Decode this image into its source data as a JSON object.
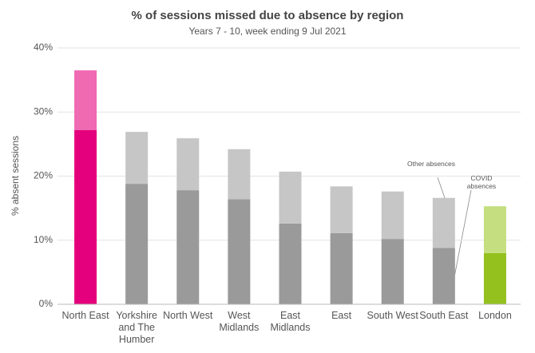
{
  "chart_data": {
    "type": "stacked-bar",
    "title": "% of sessions missed due to absence by region",
    "subtitle": "Years 7 - 10, week ending 9 Jul 2021",
    "y_label": "% absent sessions",
    "categories": [
      "North East",
      "Yorkshire and The Humber",
      "North West",
      "West Midlands",
      "East Midlands",
      "East",
      "South West",
      "South East",
      "London"
    ],
    "series": [
      {
        "name": "COVID absences",
        "values": [
          27.2,
          18.8,
          17.8,
          16.4,
          12.6,
          11.1,
          10.2,
          8.8,
          8.0
        ],
        "colors": [
          "#e4007c",
          "#9a9a9a",
          "#9a9a9a",
          "#9a9a9a",
          "#9a9a9a",
          "#9a9a9a",
          "#9a9a9a",
          "#9a9a9a",
          "#95c11f"
        ]
      },
      {
        "name": "Other absences",
        "values": [
          9.3,
          8.1,
          8.1,
          7.8,
          8.1,
          7.3,
          7.4,
          7.8,
          7.3
        ],
        "colors": [
          "#f06ab2",
          "#c6c6c6",
          "#c6c6c6",
          "#c6c6c6",
          "#c6c6c6",
          "#c6c6c6",
          "#c6c6c6",
          "#c6c6c6",
          "#c5de80"
        ]
      }
    ],
    "ylim": [
      0,
      40
    ],
    "yticks": [
      {
        "value": 0,
        "label": "0%"
      },
      {
        "value": 10,
        "label": "10%"
      },
      {
        "value": 20,
        "label": "20%"
      },
      {
        "value": 30,
        "label": "30%"
      },
      {
        "value": 40,
        "label": "40%"
      }
    ],
    "grid": true
  }
}
